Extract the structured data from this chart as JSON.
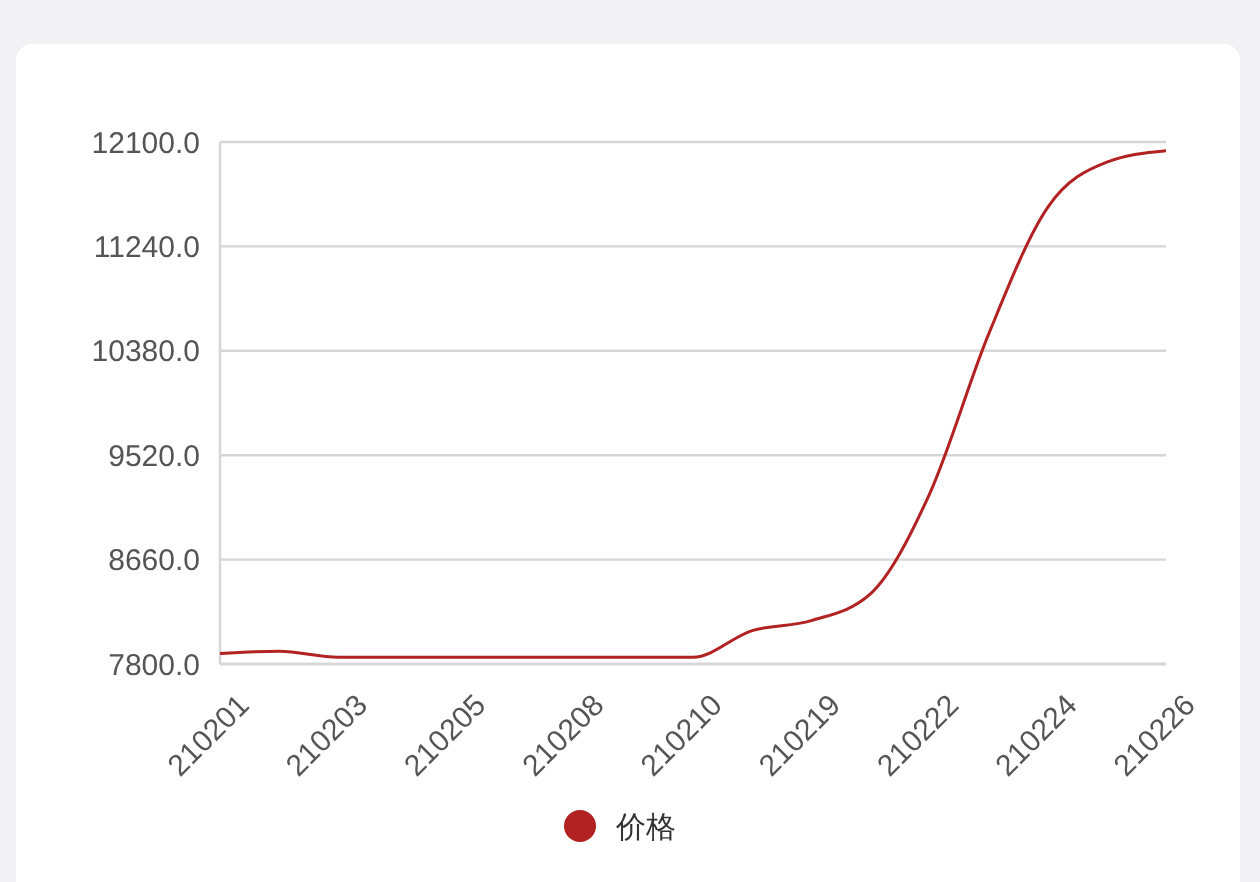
{
  "chart_data": {
    "type": "line",
    "categories": [
      "210201",
      null,
      "210203",
      null,
      "210205",
      null,
      "210208",
      null,
      "210210",
      null,
      "210219",
      null,
      "210222",
      null,
      "210224",
      null,
      "210226"
    ],
    "series": [
      {
        "name": "价格",
        "color": "#b22222",
        "values": [
          7887,
          7905,
          7856,
          7856,
          7856,
          7856,
          7856,
          7856,
          7856,
          8075,
          8157,
          8377,
          9200,
          10517,
          11562,
          11934,
          12028
        ]
      }
    ],
    "ylim": [
      7800,
      12100
    ],
    "yticks": [
      {
        "value": 7800,
        "label": "7800.0"
      },
      {
        "value": 8660,
        "label": "8660.0"
      },
      {
        "value": 9520,
        "label": "9520.0"
      },
      {
        "value": 10380,
        "label": "10380.0"
      },
      {
        "value": 11240,
        "label": "11240.0"
      },
      {
        "value": 12100,
        "label": "12100.0"
      }
    ],
    "grid": "y",
    "legend": "bottom",
    "marker": "none",
    "line_style": "solid"
  }
}
